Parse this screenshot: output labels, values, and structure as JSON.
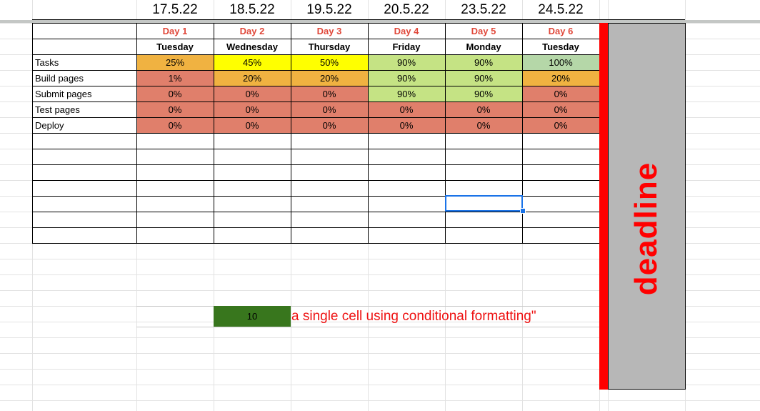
{
  "colors": {
    "orange": "#f0b241",
    "yellow": "#ffff00",
    "light_green": "#c5e384",
    "green": "#b5d7a8",
    "red": "#e07f6b",
    "day_label": "#e0483a",
    "deadline_red": "#ff0000",
    "deadline_panel": "#b7b7b7",
    "dark_green": "#38761d",
    "note_red": "#ee1111",
    "selection_blue": "#1a73e8"
  },
  "dates": [
    "17.5.22",
    "18.5.22",
    "19.5.22",
    "20.5.22",
    "23.5.22",
    "24.5.22"
  ],
  "days": [
    "Day 1",
    "Day 2",
    "Day 3",
    "Day 4",
    "Day 5",
    "Day 6"
  ],
  "weekdays": [
    "Tuesday",
    "Wednesday",
    "Thursday",
    "Friday",
    "Monday",
    "Tuesday"
  ],
  "rows": [
    {
      "label": "Tasks",
      "values": [
        "25%",
        "45%",
        "50%",
        "90%",
        "90%",
        "100%"
      ],
      "fills": [
        "orange",
        "yellow",
        "yellow",
        "light_green",
        "light_green",
        "green"
      ]
    },
    {
      "label": "Build pages",
      "values": [
        "1%",
        "20%",
        "20%",
        "90%",
        "90%",
        "20%"
      ],
      "fills": [
        "red",
        "orange",
        "orange",
        "light_green",
        "light_green",
        "orange"
      ]
    },
    {
      "label": "Submit pages",
      "values": [
        "0%",
        "0%",
        "0%",
        "90%",
        "90%",
        "0%"
      ],
      "fills": [
        "red",
        "red",
        "red",
        "light_green",
        "light_green",
        "red"
      ]
    },
    {
      "label": "Test pages",
      "values": [
        "0%",
        "0%",
        "0%",
        "0%",
        "0%",
        "0%"
      ],
      "fills": [
        "red",
        "red",
        "red",
        "red",
        "red",
        "red"
      ]
    },
    {
      "label": "Deploy",
      "values": [
        "0%",
        "0%",
        "0%",
        "0%",
        "0%",
        "0%"
      ],
      "fills": [
        "red",
        "red",
        "red",
        "red",
        "red",
        "red"
      ]
    }
  ],
  "deadline_label": "deadline",
  "green_cell_value": "10",
  "note_text": "a single cell using conditional formatting\""
}
